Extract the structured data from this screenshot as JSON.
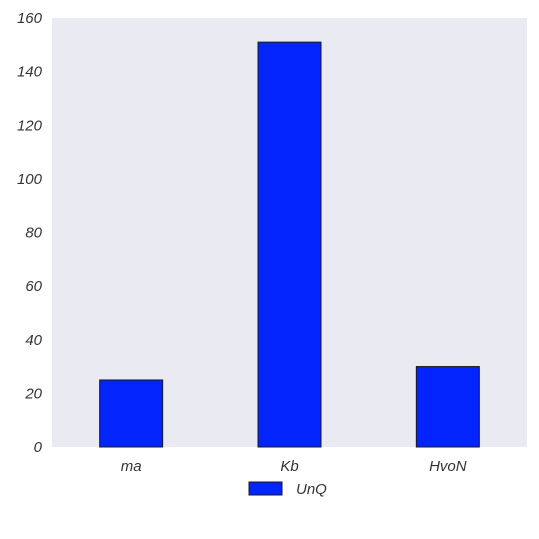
{
  "chart_data": {
    "type": "bar",
    "categories": [
      "ma",
      "Kb",
      "HvoN"
    ],
    "series": [
      {
        "name": "UnQ",
        "values": [
          25,
          151,
          30
        ]
      }
    ],
    "ylim": [
      0,
      160
    ],
    "yticks": [
      0,
      20,
      40,
      60,
      80,
      100,
      120,
      140,
      160
    ],
    "grid": false,
    "legend_position": "bottom-center",
    "colors": {
      "plot_background": "#EAEAF2",
      "bar_fill": "#0324FC",
      "bar_edge": "#1a1a1a"
    }
  }
}
